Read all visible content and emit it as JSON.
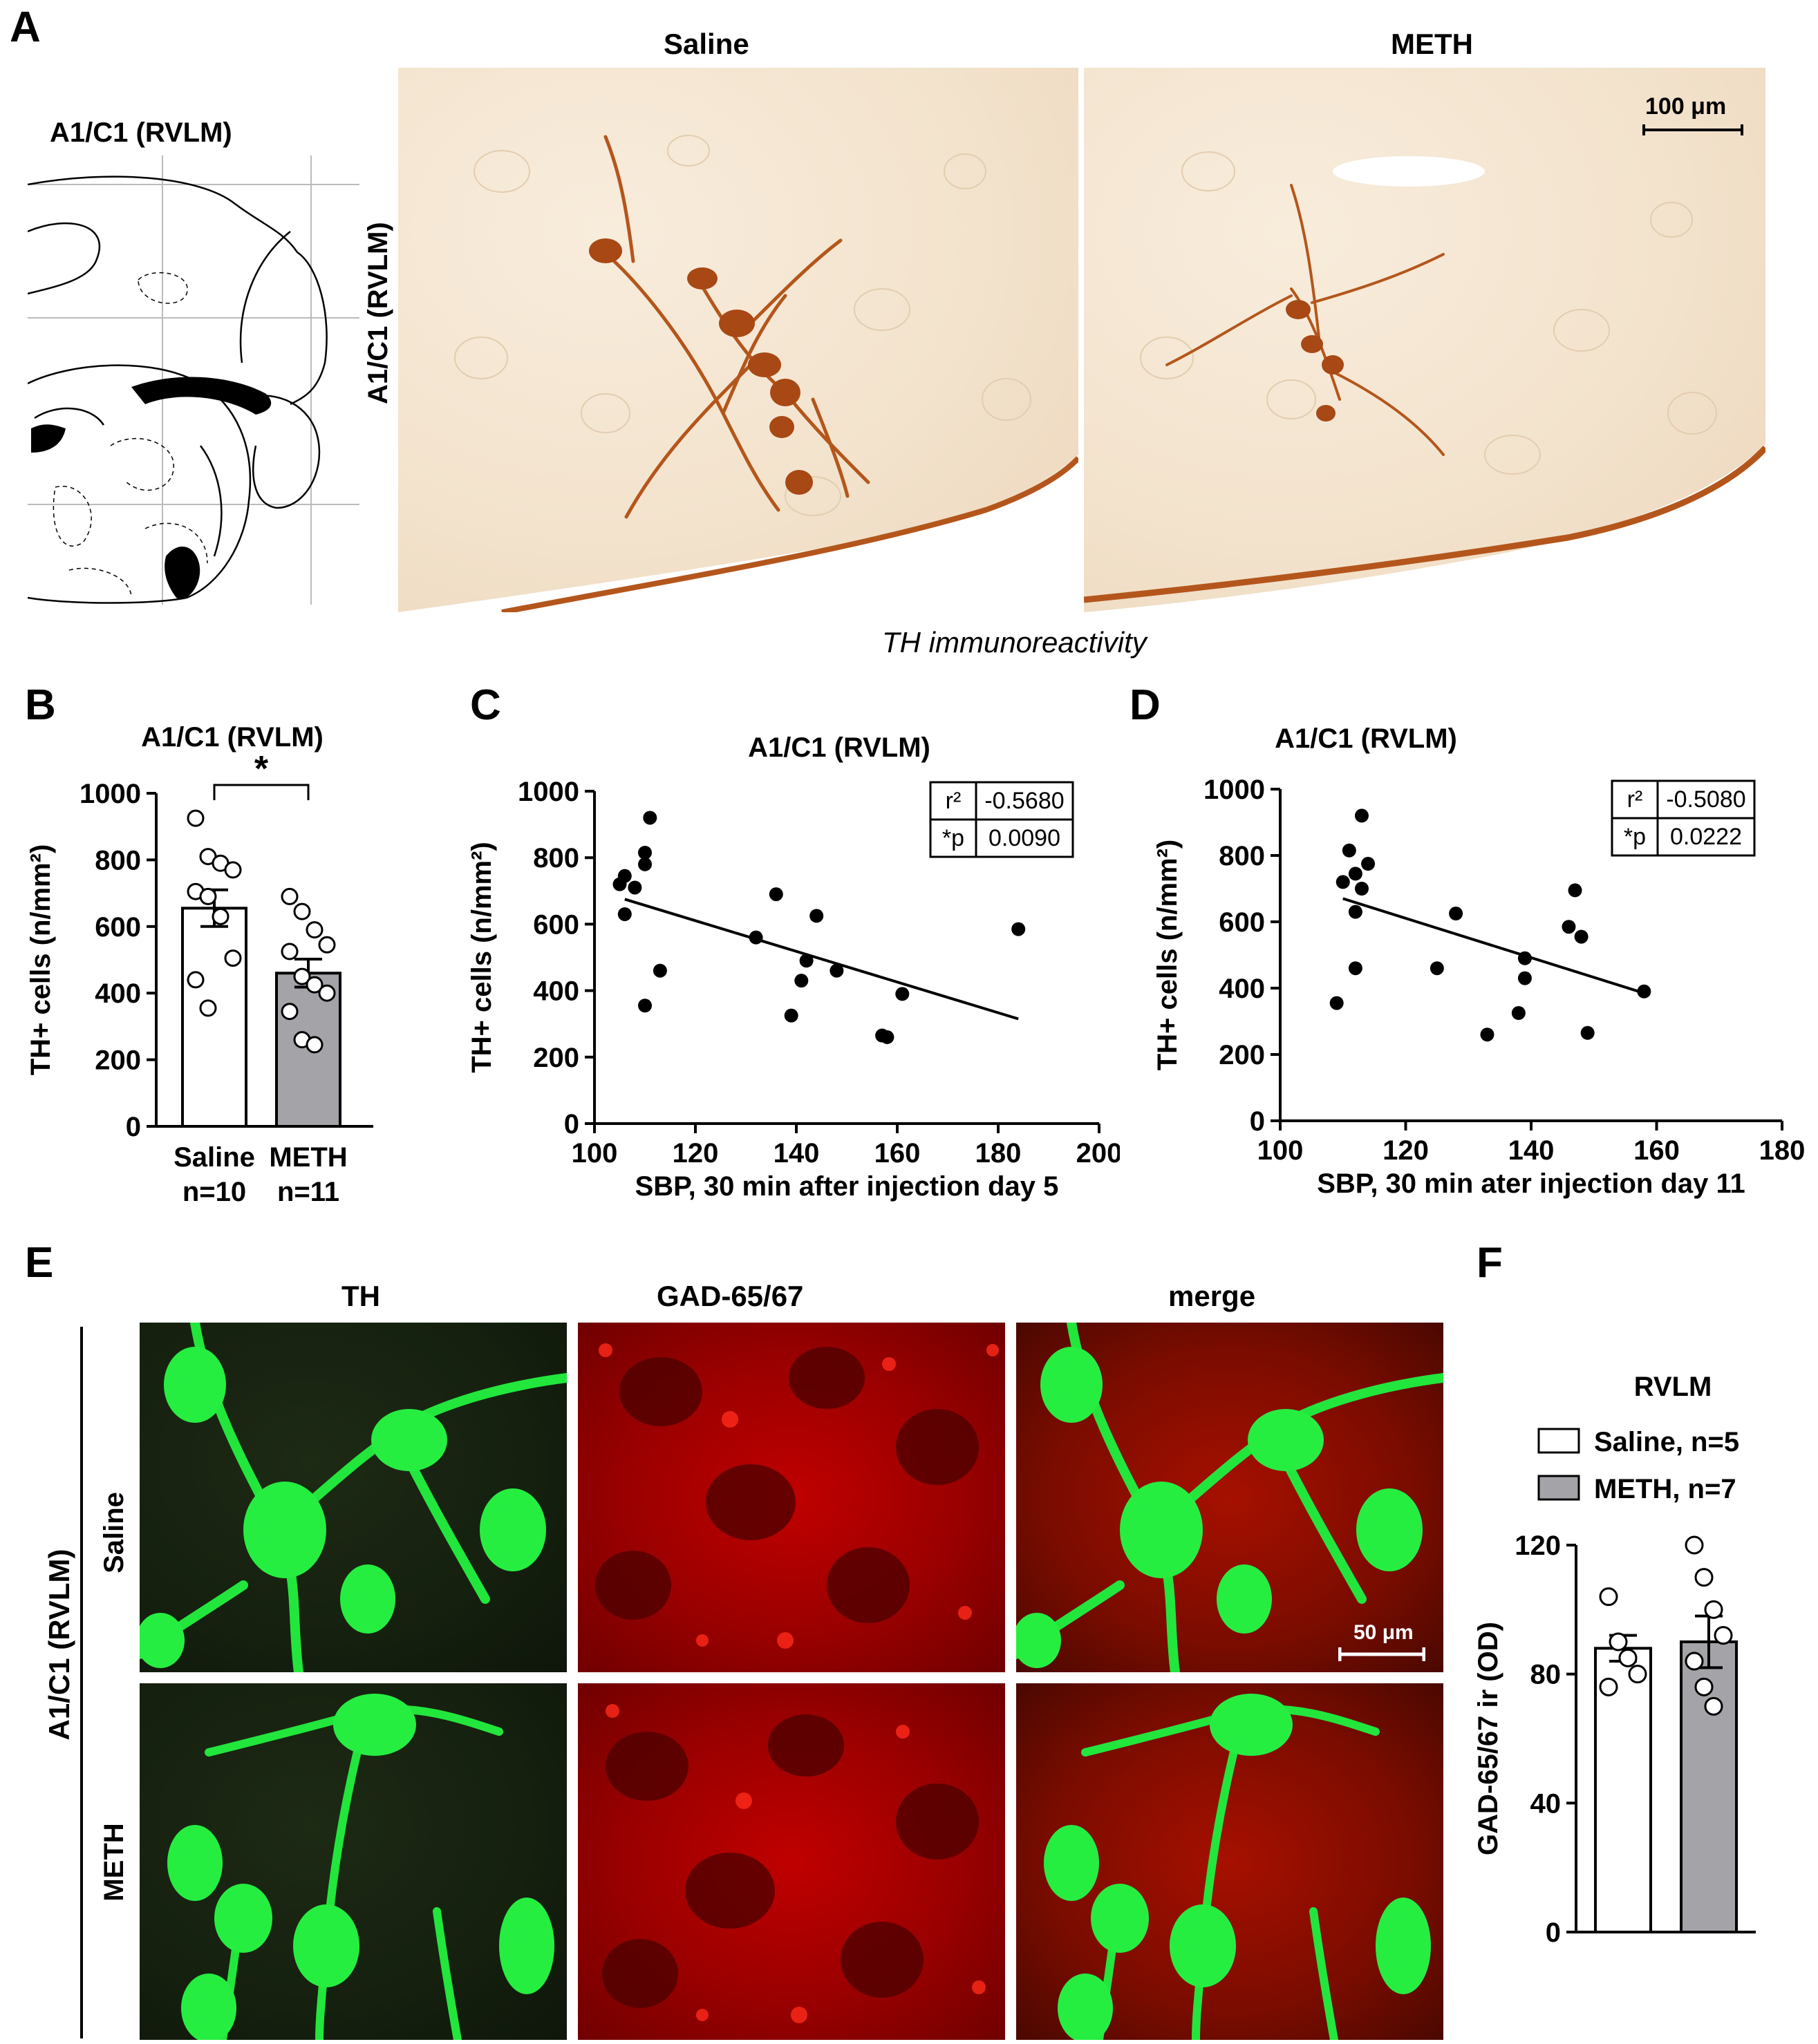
{
  "panel_a": {
    "letter": "A",
    "atlas_title": "A1/C1 (RVLM)",
    "row_label": "A1/C1 (RVLM)",
    "col_saline": "Saline",
    "col_meth": "METH",
    "scale_bar": "100 μm",
    "caption": "TH immunoreactivity"
  },
  "panel_b": {
    "letter": "B"
  },
  "panel_c": {
    "letter": "C"
  },
  "panel_d": {
    "letter": "D"
  },
  "panel_e": {
    "letter": "E",
    "row_label": "A1/C1 (RVLM)",
    "col_th": "TH",
    "col_gad": "GAD-65/67",
    "col_merge": "merge",
    "row_saline": "Saline",
    "row_meth": "METH",
    "scale_bar": "50 μm"
  },
  "panel_f": {
    "letter": "F"
  },
  "colors": {
    "saline_bar": "#ffffff",
    "meth_bar": "#a3a3a8",
    "ink": "#000000",
    "ihc_brown": "#b4561c",
    "fluor_green": "#22e63c",
    "fluor_red": "#ff1a10"
  },
  "chart_data": [
    {
      "id": "B",
      "type": "bar",
      "title": "A1/C1 (RVLM)",
      "ylabel": "TH+ cells  (n/mm²)",
      "categories": [
        "Saline",
        "METH"
      ],
      "category_n": [
        "n=10",
        "n=11"
      ],
      "values": [
        655,
        460
      ],
      "sem": [
        55,
        42
      ],
      "ylim": [
        0,
        1000
      ],
      "yticks": [
        0,
        200,
        400,
        600,
        800,
        1000
      ],
      "significance": "*",
      "points": [
        [
          925,
          810,
          790,
          770,
          705,
          690,
          630,
          505,
          440,
          355
        ],
        [
          690,
          645,
          590,
          545,
          525,
          450,
          425,
          400,
          345,
          260,
          245
        ]
      ]
    },
    {
      "id": "C",
      "type": "scatter",
      "title": "A1/C1 (RVLM)",
      "xlabel": "SBP, 30 min after injection day 5",
      "ylabel": "TH+ cells (n/mm²)",
      "xlim": [
        100,
        200
      ],
      "ylim": [
        0,
        1000
      ],
      "xticks": [
        100,
        120,
        140,
        160,
        180,
        200
      ],
      "yticks": [
        0,
        200,
        400,
        600,
        800,
        1000
      ],
      "stats": [
        {
          "label": "r²",
          "value": "-0.5680"
        },
        {
          "label": "*p",
          "value": "0.0090"
        }
      ],
      "fit": {
        "x": [
          106,
          184
        ],
        "y": [
          675,
          315
        ]
      },
      "points": [
        [
          105,
          720
        ],
        [
          106,
          745
        ],
        [
          106,
          630
        ],
        [
          108,
          710
        ],
        [
          110,
          815
        ],
        [
          110,
          780
        ],
        [
          111,
          920
        ],
        [
          110,
          355
        ],
        [
          113,
          460
        ],
        [
          132,
          560
        ],
        [
          136,
          690
        ],
        [
          139,
          325
        ],
        [
          141,
          430
        ],
        [
          142,
          490
        ],
        [
          144,
          625
        ],
        [
          148,
          460
        ],
        [
          157,
          265
        ],
        [
          158,
          260
        ],
        [
          161,
          390
        ],
        [
          184,
          585
        ]
      ]
    },
    {
      "id": "D",
      "type": "scatter",
      "title": "A1/C1 (RVLM)",
      "xlabel": "SBP, 30 min ater injection day 11",
      "ylabel": "TH+ cells (n/mm²)",
      "xlim": [
        100,
        180
      ],
      "ylim": [
        0,
        1000
      ],
      "xticks": [
        100,
        120,
        140,
        160,
        180
      ],
      "yticks": [
        0,
        200,
        400,
        600,
        800,
        1000
      ],
      "stats": [
        {
          "label": "r²",
          "value": "-0.5080"
        },
        {
          "label": "*p",
          "value": "0.0222"
        }
      ],
      "fit": {
        "x": [
          110,
          158
        ],
        "y": [
          670,
          385
        ]
      },
      "points": [
        [
          109,
          355
        ],
        [
          110,
          720
        ],
        [
          111,
          815
        ],
        [
          112,
          745
        ],
        [
          112,
          630
        ],
        [
          113,
          920
        ],
        [
          113,
          700
        ],
        [
          112,
          460
        ],
        [
          114,
          775
        ],
        [
          125,
          460
        ],
        [
          128,
          625
        ],
        [
          133,
          260
        ],
        [
          138,
          325
        ],
        [
          139,
          430
        ],
        [
          139,
          490
        ],
        [
          146,
          585
        ],
        [
          147,
          695
        ],
        [
          148,
          555
        ],
        [
          149,
          265
        ],
        [
          158,
          390
        ]
      ]
    },
    {
      "id": "F",
      "type": "bar",
      "title": "RVLM",
      "ylabel": "GAD-65/67 ir (OD)",
      "categories": [
        "Saline",
        "METH"
      ],
      "legend": [
        "Saline, n=5",
        "METH, n=7"
      ],
      "values": [
        88,
        90
      ],
      "sem": [
        4,
        8
      ],
      "ylim": [
        0,
        120
      ],
      "yticks": [
        0,
        40,
        80,
        120
      ],
      "points": [
        [
          104,
          90,
          85,
          80,
          76
        ],
        [
          120,
          110,
          100,
          92,
          84,
          76,
          70
        ]
      ]
    }
  ]
}
